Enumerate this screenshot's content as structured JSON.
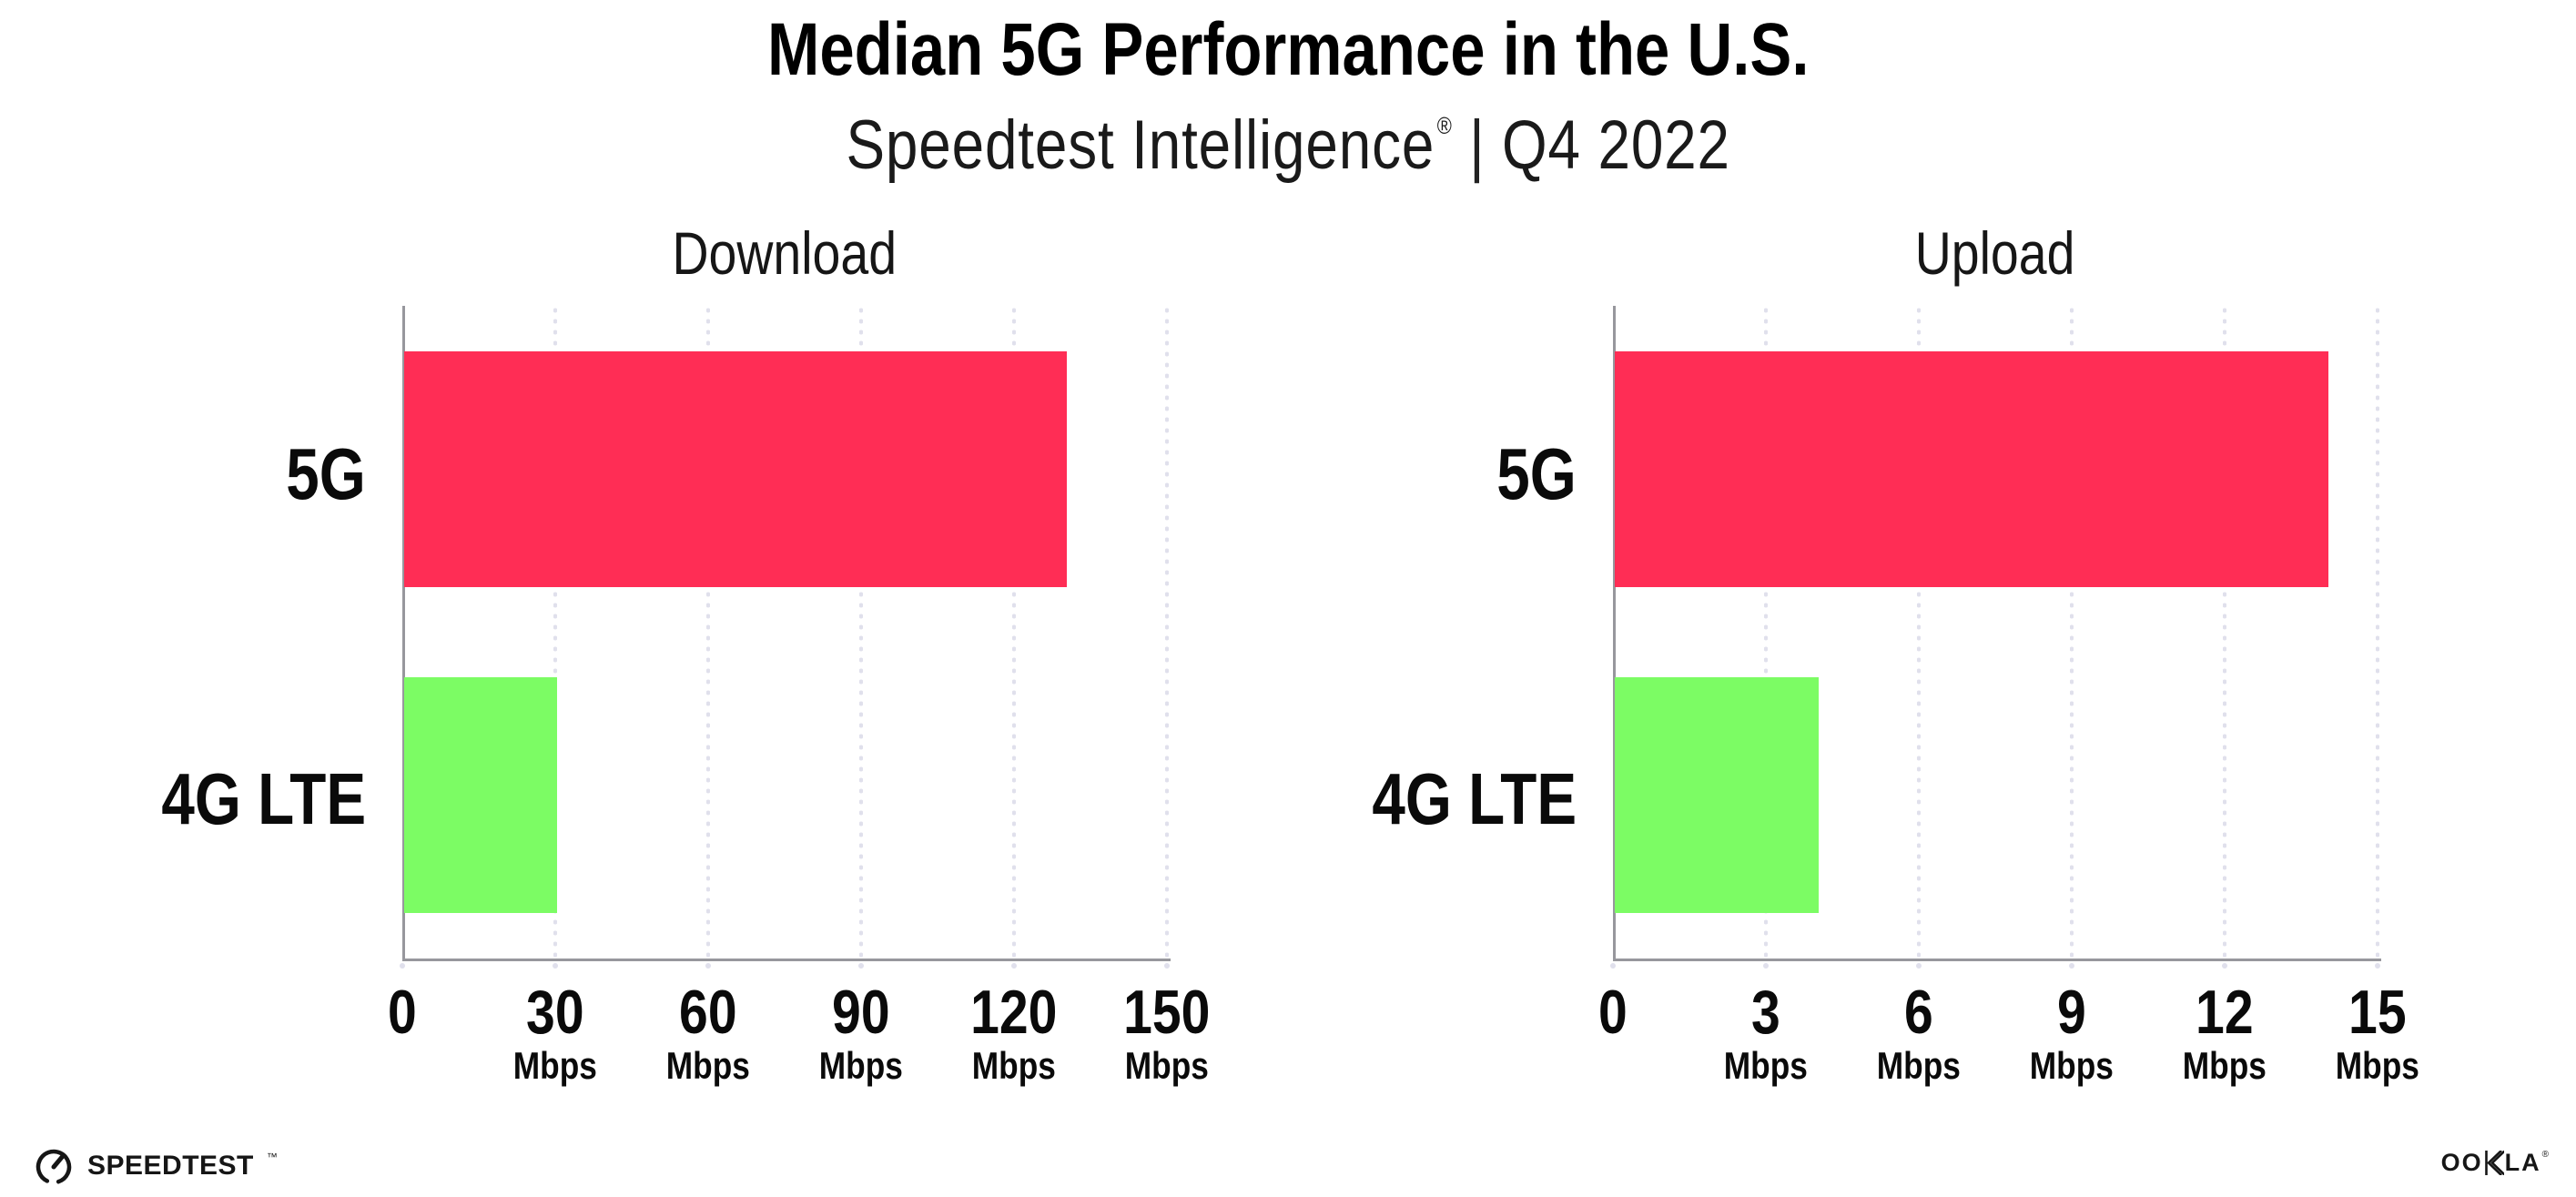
{
  "header": {
    "title": "Median 5G Performance in the U.S.",
    "subtitle_brand": "Speedtest Intelligence",
    "subtitle_reg": "®",
    "subtitle_separator": "|",
    "subtitle_period": "Q4 2022"
  },
  "chart_data": [
    {
      "type": "bar",
      "orientation": "horizontal",
      "title": "Download",
      "categories": [
        "5G",
        "4G LTE"
      ],
      "values": [
        130,
        30
      ],
      "unit": "Mbps",
      "xlim": [
        0,
        150
      ],
      "xticks": [
        0,
        30,
        60,
        90,
        120,
        150
      ],
      "bar_colors": [
        "#FF2D55",
        "#7CFC64"
      ],
      "grid": "dotted-vertical",
      "legend": "none"
    },
    {
      "type": "bar",
      "orientation": "horizontal",
      "title": "Upload",
      "categories": [
        "5G",
        "4G LTE"
      ],
      "values": [
        14,
        4
      ],
      "unit": "Mbps",
      "xlim": [
        0,
        15
      ],
      "xticks": [
        0,
        3,
        6,
        9,
        12,
        15
      ],
      "bar_colors": [
        "#FF2D55",
        "#7CFC64"
      ],
      "grid": "dotted-vertical",
      "legend": "none"
    }
  ],
  "footer": {
    "speedtest_logo_text": "SPEEDTEST",
    "speedtest_trademark": "™",
    "ookla_logo_text": "OOKLA",
    "ookla_trademark": "®"
  },
  "colors": {
    "bar_5g": "#FF2D55",
    "bar_4g_lte": "#7CFC64",
    "axis": "#97979d",
    "gridline": "#e0e0ec",
    "text": "#111111",
    "background": "#ffffff"
  }
}
